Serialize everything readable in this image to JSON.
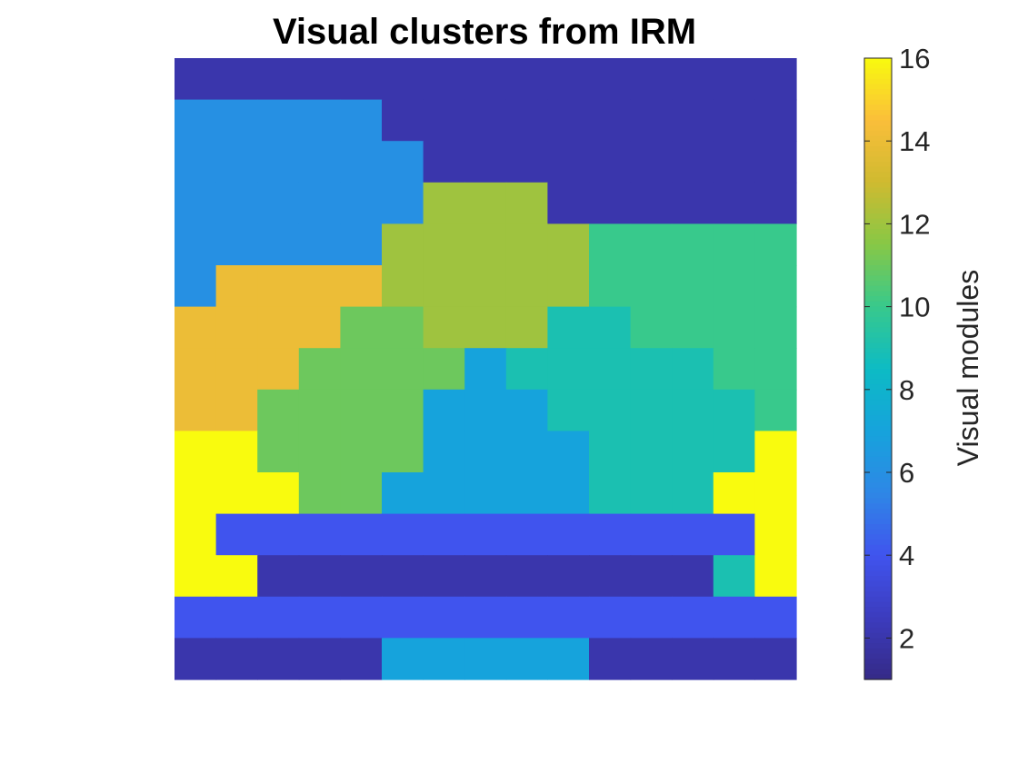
{
  "chart_data": {
    "type": "heatmap",
    "title": "Visual clusters from IRM",
    "xlabel": "",
    "ylabel": "",
    "axes_visible": false,
    "rows": 15,
    "cols": 15,
    "values": [
      [
        2,
        2,
        2,
        2,
        2,
        2,
        2,
        2,
        2,
        2,
        2,
        2,
        2,
        2,
        2
      ],
      [
        6,
        6,
        6,
        6,
        6,
        2,
        2,
        2,
        2,
        2,
        2,
        2,
        2,
        2,
        2
      ],
      [
        6,
        6,
        6,
        6,
        6,
        6,
        2,
        2,
        2,
        2,
        2,
        2,
        2,
        2,
        2
      ],
      [
        6,
        6,
        6,
        6,
        6,
        6,
        12,
        12,
        12,
        2,
        2,
        2,
        2,
        2,
        2
      ],
      [
        6,
        6,
        6,
        6,
        6,
        12,
        12,
        12,
        12,
        12,
        10,
        10,
        10,
        10,
        10
      ],
      [
        6,
        14,
        14,
        14,
        14,
        12,
        12,
        12,
        12,
        12,
        10,
        10,
        10,
        10,
        10
      ],
      [
        14,
        14,
        14,
        14,
        11,
        11,
        12,
        12,
        12,
        9,
        9,
        10,
        10,
        10,
        10
      ],
      [
        14,
        14,
        14,
        11,
        11,
        11,
        11,
        7,
        9,
        9,
        9,
        9,
        9,
        10,
        10
      ],
      [
        14,
        14,
        11,
        11,
        11,
        11,
        7,
        7,
        7,
        9,
        9,
        9,
        9,
        9,
        10
      ],
      [
        16,
        16,
        11,
        11,
        11,
        11,
        7,
        7,
        7,
        7,
        9,
        9,
        9,
        9,
        16
      ],
      [
        16,
        16,
        16,
        11,
        11,
        7,
        7,
        7,
        7,
        7,
        9,
        9,
        9,
        16,
        16
      ],
      [
        16,
        4,
        4,
        4,
        4,
        4,
        4,
        4,
        4,
        4,
        4,
        4,
        4,
        4,
        16
      ],
      [
        16,
        16,
        2,
        2,
        2,
        2,
        2,
        2,
        2,
        2,
        2,
        2,
        2,
        9,
        16
      ],
      [
        4,
        4,
        4,
        4,
        4,
        4,
        4,
        4,
        4,
        4,
        4,
        4,
        4,
        4,
        4
      ],
      [
        2,
        2,
        2,
        2,
        2,
        7,
        7,
        7,
        7,
        7,
        2,
        2,
        2,
        2,
        2
      ]
    ],
    "clim": [
      1,
      16
    ],
    "colormap": "parula",
    "colorbar": {
      "label": "Visual modules",
      "ticks": [
        2,
        4,
        6,
        8,
        10,
        12,
        14,
        16
      ],
      "tick_labels": [
        "2",
        "4",
        "6",
        "8",
        "10",
        "12",
        "14",
        "16"
      ]
    },
    "grid": false,
    "legend": "none"
  }
}
